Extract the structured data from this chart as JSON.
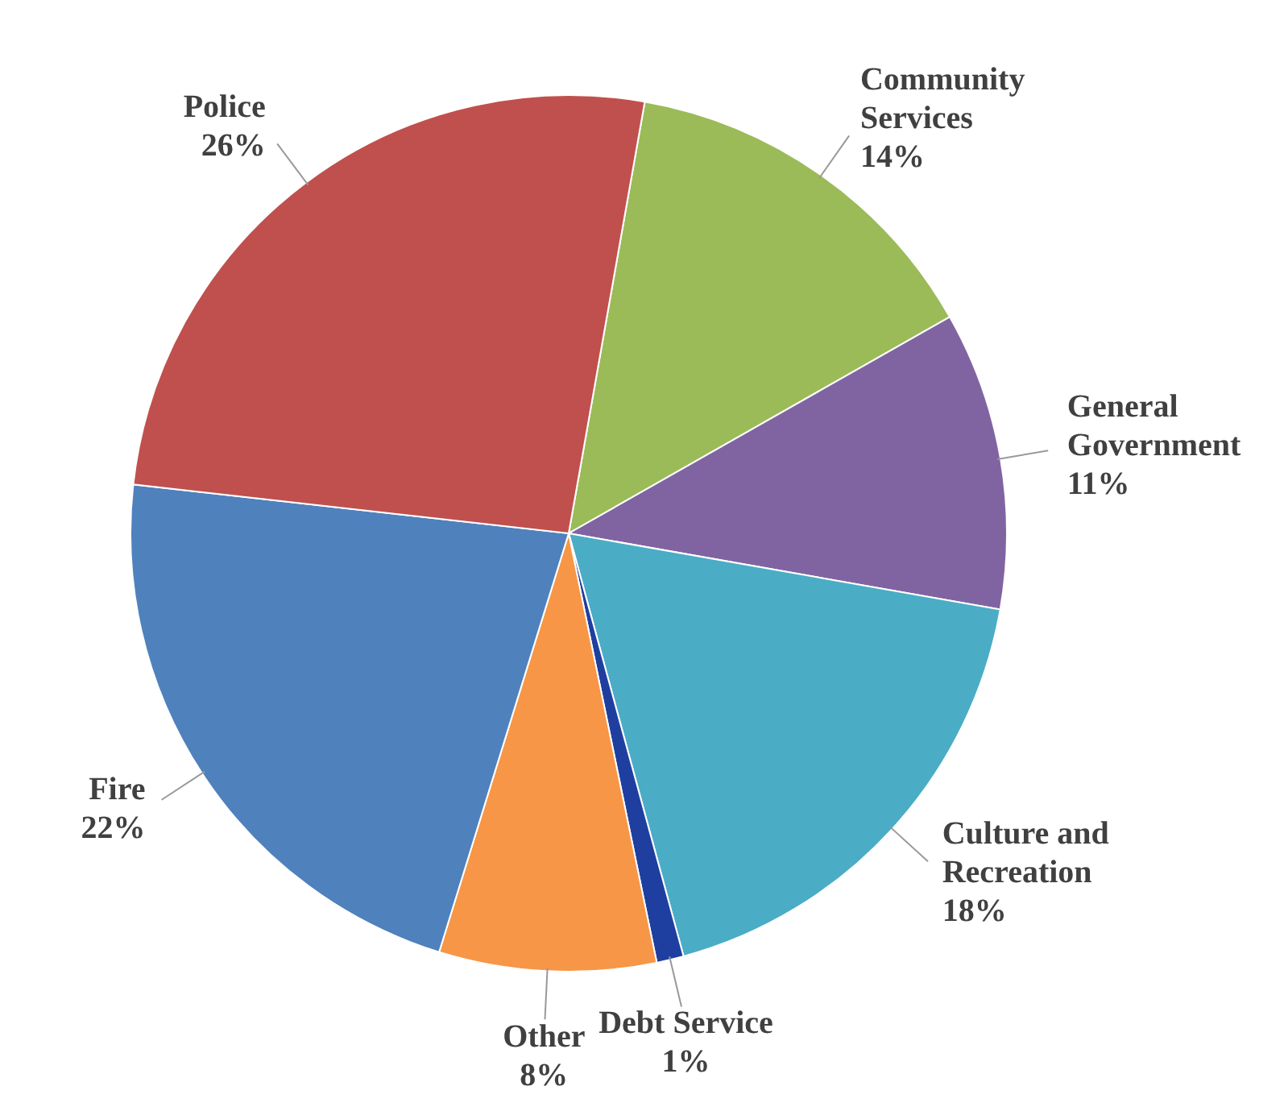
{
  "chart_data": {
    "type": "pie",
    "categories": [
      "Community Services",
      "General Government",
      "Culture and Recreation",
      "Debt Service",
      "Other",
      "Fire",
      "Police"
    ],
    "values": [
      14,
      11,
      18,
      1,
      8,
      22,
      26
    ],
    "value_labels": [
      "14%",
      "11%",
      "18%",
      "1%",
      "8%",
      "22%",
      "26%"
    ],
    "colors": [
      "#9bbb59",
      "#8064a2",
      "#4bacc6",
      "#1f3fa0",
      "#f79646",
      "#4f81bd",
      "#c0504d"
    ]
  }
}
